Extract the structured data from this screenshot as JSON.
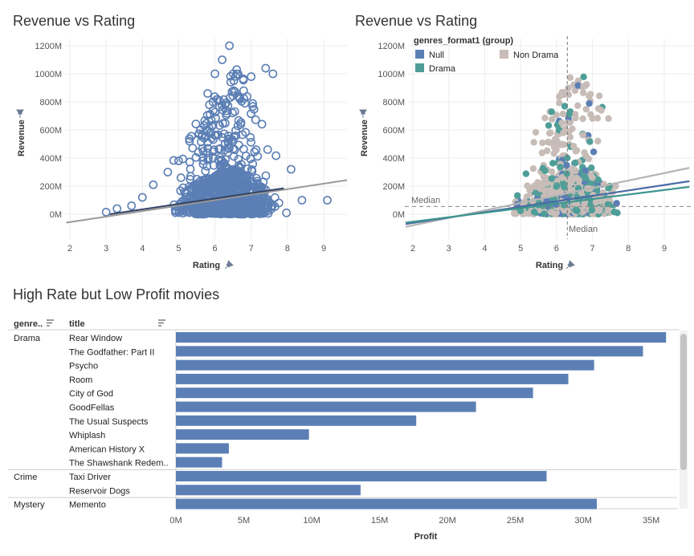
{
  "charts": {
    "scatter_left": {
      "title": "Revenue vs Rating",
      "xlabel": "Rating",
      "ylabel": "Revenue",
      "xticks": [
        "2",
        "3",
        "4",
        "5",
        "6",
        "7",
        "8",
        "9"
      ],
      "yticks": [
        "0M",
        "200M",
        "400M",
        "600M",
        "800M",
        "1000M",
        "1200M"
      ]
    },
    "scatter_right": {
      "title": "Revenue vs Rating",
      "xlabel": "Rating",
      "ylabel": "Revenue",
      "xticks": [
        "2",
        "3",
        "4",
        "5",
        "6",
        "7",
        "8",
        "9"
      ],
      "yticks": [
        "0M",
        "200M",
        "400M",
        "600M",
        "800M",
        "1000M",
        "1200M"
      ],
      "legend_title": "genres_format1 (group)",
      "legend": [
        {
          "label": "Null",
          "color": "#5b7fb5"
        },
        {
          "label": "Non Drama",
          "color": "#c7bcb7"
        },
        {
          "label": "Drama",
          "color": "#4f9e98"
        }
      ],
      "median_x_label": "Median",
      "median_y_label": "Median"
    },
    "bars": {
      "title": "High Rate but Low Profit movies",
      "col_genre": "genre..",
      "col_title": "title",
      "xlabel": "Profit",
      "xticks": [
        "0M",
        "5M",
        "10M",
        "15M",
        "20M",
        "25M",
        "30M",
        "35M"
      ]
    }
  },
  "chart_data": [
    {
      "type": "scatter",
      "title": "Revenue vs Rating",
      "xlabel": "Rating",
      "ylabel": "Revenue",
      "xlim": [
        1.8,
        9.7
      ],
      "ylim": [
        -80,
        1230
      ],
      "marker": "hollow-circle",
      "color": "#5b7fb5",
      "trend_lines": [
        {
          "color": "#999999",
          "x": [
            1.9,
            9.7
          ],
          "y": [
            -60,
            245
          ]
        },
        {
          "color": "#334466",
          "x": [
            3.1,
            7.9
          ],
          "y": [
            0,
            185
          ]
        }
      ],
      "points_outline": [
        [
          3.0,
          15
        ],
        [
          3.3,
          40
        ],
        [
          3.7,
          60
        ],
        [
          4.0,
          120
        ],
        [
          4.3,
          210
        ],
        [
          4.7,
          300
        ],
        [
          5.0,
          380
        ],
        [
          5.3,
          520
        ],
        [
          5.6,
          600
        ],
        [
          5.8,
          860
        ],
        [
          6.0,
          1000
        ],
        [
          6.2,
          1100
        ],
        [
          6.4,
          1200
        ],
        [
          6.6,
          1030
        ],
        [
          7.0,
          980
        ],
        [
          7.4,
          1040
        ],
        [
          7.6,
          1000
        ],
        [
          8.1,
          320
        ],
        [
          8.4,
          100
        ],
        [
          9.1,
          100
        ]
      ]
    },
    {
      "type": "scatter",
      "title": "Revenue vs Rating",
      "xlabel": "Rating",
      "ylabel": "Revenue",
      "xlim": [
        1.8,
        9.7
      ],
      "ylim": [
        -100,
        1230
      ],
      "marker": "filled-circle",
      "series": [
        {
          "name": "Null",
          "color": "#5b7fb5"
        },
        {
          "name": "Non Drama",
          "color": "#c7bcb7"
        },
        {
          "name": "Drama",
          "color": "#4f9e98"
        }
      ],
      "reference_lines": {
        "median_x": 6.3,
        "median_y": 55
      },
      "trend_lines": [
        {
          "series": "Non Drama",
          "color": "#b5b5b5",
          "x": [
            1.8,
            9.7
          ],
          "y": [
            -90,
            330
          ]
        },
        {
          "series": "Null",
          "color": "#4a6aa5",
          "x": [
            1.8,
            9.7
          ],
          "y": [
            -70,
            235
          ]
        },
        {
          "series": "Drama",
          "color": "#3f968f",
          "x": [
            1.8,
            9.7
          ],
          "y": [
            -60,
            195
          ]
        }
      ]
    },
    {
      "type": "bar",
      "orientation": "horizontal",
      "title": "High Rate but Low Profit movies",
      "xlabel": "Profit",
      "xlim": [
        0,
        36.5
      ],
      "unit": "M",
      "color": "#5b7fb5",
      "groups": [
        {
          "genre": "Drama",
          "rows": [
            {
              "title": "Rear Window",
              "value": 36.1
            },
            {
              "title": "The Godfather: Part II",
              "value": 34.4
            },
            {
              "title": "Psycho",
              "value": 30.8
            },
            {
              "title": "Room",
              "value": 28.9
            },
            {
              "title": "City of God",
              "value": 26.3
            },
            {
              "title": "GoodFellas",
              "value": 22.1
            },
            {
              "title": "The Usual Suspects",
              "value": 17.7
            },
            {
              "title": "Whiplash",
              "value": 9.8
            },
            {
              "title": "American History X",
              "value": 3.9
            },
            {
              "title": "The Shawshank Redem..",
              "value": 3.4
            }
          ]
        },
        {
          "genre": "Crime",
          "rows": [
            {
              "title": "Taxi Driver",
              "value": 27.3
            },
            {
              "title": "Reservoir Dogs",
              "value": 13.6
            }
          ]
        },
        {
          "genre": "Mystery",
          "rows": [
            {
              "title": "Memento",
              "value": 31.0
            }
          ]
        }
      ]
    }
  ]
}
